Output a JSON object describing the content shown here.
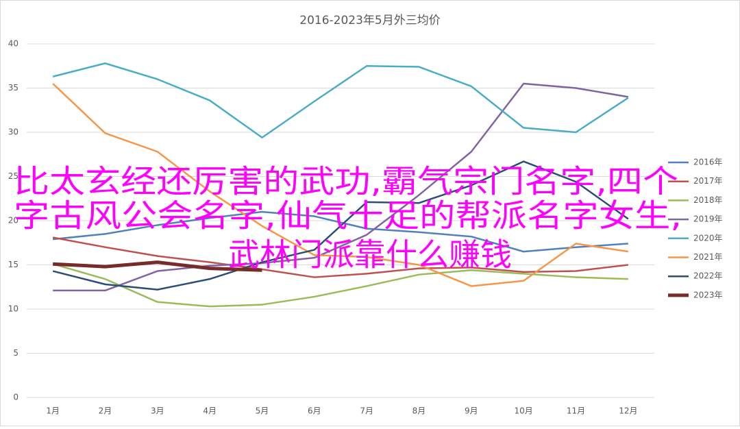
{
  "chart_data": {
    "type": "line",
    "title": "2016-2023年5月外三均价",
    "categories": [
      "1月",
      "2月",
      "3月",
      "4月",
      "5月",
      "6月",
      "7月",
      "8月",
      "9月",
      "10月",
      "11月",
      "12月"
    ],
    "ylim": [
      0,
      40
    ],
    "yticks": [
      0,
      5,
      10,
      15,
      20,
      25,
      30,
      35,
      40
    ],
    "grid": true,
    "legend": "right",
    "series": [
      {
        "name": "2016年",
        "color": "#4f81bd",
        "values": [
          17.9,
          18.5,
          19.5,
          20.3,
          21.0,
          20.5,
          19.1,
          18.7,
          18.2,
          16.5,
          17.0,
          17.4
        ]
      },
      {
        "name": "2017年",
        "color": "#c0504d",
        "values": [
          18.1,
          17.0,
          16.0,
          15.3,
          14.5,
          13.6,
          14.0,
          14.6,
          14.7,
          14.2,
          14.3,
          15.0
        ]
      },
      {
        "name": "2018年",
        "color": "#9bbb59",
        "values": [
          15.1,
          13.4,
          10.8,
          10.3,
          10.5,
          11.4,
          12.6,
          13.9,
          14.4,
          14.0,
          13.6,
          13.4
        ]
      },
      {
        "name": "2019年",
        "color": "#8064a2",
        "values": [
          12.1,
          12.1,
          14.3,
          14.9,
          15.2,
          15.8,
          18.4,
          22.9,
          27.8,
          35.5,
          35.0,
          34.0
        ]
      },
      {
        "name": "2020年",
        "color": "#4bacc6",
        "values": [
          36.3,
          37.8,
          36.0,
          33.6,
          29.4,
          33.5,
          37.5,
          37.4,
          35.2,
          30.5,
          30.0,
          33.9
        ]
      },
      {
        "name": "2021年",
        "color": "#f79646",
        "values": [
          35.5,
          29.9,
          27.8,
          23.3,
          19.4,
          16.1,
          15.9,
          15.0,
          12.6,
          13.2,
          17.4,
          16.5
        ]
      },
      {
        "name": "2022年",
        "color": "#2c4d75",
        "values": [
          14.3,
          12.8,
          12.2,
          13.4,
          15.3,
          16.7,
          22.1,
          22.0,
          24.0,
          26.7,
          24.4,
          20.2
        ]
      },
      {
        "name": "2023年",
        "color": "#772c2a",
        "values": [
          15.1,
          14.8,
          15.3,
          14.6,
          14.4,
          null,
          null,
          null,
          null,
          null,
          null,
          null
        ]
      }
    ]
  },
  "overlay": {
    "lines": [
      "比太玄经还厉害的武功,霸气宗门名字,四个",
      "字古风公会名字,仙气十足的帮派名字女生,",
      "武林门派靠什么赚钱"
    ],
    "color": "#ff00ff"
  }
}
